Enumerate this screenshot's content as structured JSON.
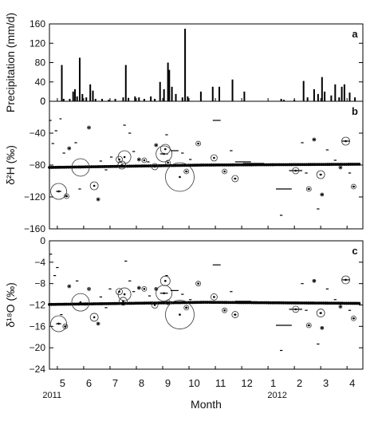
{
  "chart_data": [
    {
      "panel": "a",
      "type": "bar",
      "ylabel": "Precipitation (mm/d)",
      "ylim": [
        0,
        160
      ],
      "yticks": [
        0,
        40,
        80,
        120,
        160
      ],
      "bars": [
        {
          "m": 4.67,
          "v": 75
        },
        {
          "m": 4.74,
          "v": 5
        },
        {
          "m": 4.97,
          "v": 5
        },
        {
          "m": 5.1,
          "v": 20
        },
        {
          "m": 5.17,
          "v": 25
        },
        {
          "m": 5.25,
          "v": 10
        },
        {
          "m": 5.35,
          "v": 90
        },
        {
          "m": 5.45,
          "v": 15
        },
        {
          "m": 5.6,
          "v": 8
        },
        {
          "m": 5.75,
          "v": 35
        },
        {
          "m": 5.85,
          "v": 22
        },
        {
          "m": 5.95,
          "v": 5
        },
        {
          "m": 6.2,
          "v": 5
        },
        {
          "m": 6.45,
          "v": 3
        },
        {
          "m": 6.7,
          "v": 5
        },
        {
          "m": 7.0,
          "v": 8
        },
        {
          "m": 7.1,
          "v": 75
        },
        {
          "m": 7.2,
          "v": 7
        },
        {
          "m": 7.45,
          "v": 10
        },
        {
          "m": 7.6,
          "v": 8
        },
        {
          "m": 7.8,
          "v": 5
        },
        {
          "m": 8.05,
          "v": 10
        },
        {
          "m": 8.2,
          "v": 5
        },
        {
          "m": 8.4,
          "v": 40
        },
        {
          "m": 8.55,
          "v": 25
        },
        {
          "m": 8.7,
          "v": 80
        },
        {
          "m": 8.75,
          "v": 65
        },
        {
          "m": 8.85,
          "v": 30
        },
        {
          "m": 9.0,
          "v": 15
        },
        {
          "m": 9.25,
          "v": 8
        },
        {
          "m": 9.35,
          "v": 150
        },
        {
          "m": 9.45,
          "v": 10
        },
        {
          "m": 9.95,
          "v": 20
        },
        {
          "m": 10.4,
          "v": 30
        },
        {
          "m": 10.65,
          "v": 30
        },
        {
          "m": 11.15,
          "v": 45
        },
        {
          "m": 11.6,
          "v": 20
        },
        {
          "m": 13.0,
          "v": 5
        },
        {
          "m": 13.1,
          "v": 3
        },
        {
          "m": 13.5,
          "v": 3
        },
        {
          "m": 13.85,
          "v": 42
        },
        {
          "m": 14.0,
          "v": 8
        },
        {
          "m": 14.25,
          "v": 25
        },
        {
          "m": 14.4,
          "v": 15
        },
        {
          "m": 14.55,
          "v": 50
        },
        {
          "m": 14.65,
          "v": 20
        },
        {
          "m": 14.9,
          "v": 12
        },
        {
          "m": 15.05,
          "v": 35
        },
        {
          "m": 15.2,
          "v": 8
        },
        {
          "m": 15.3,
          "v": 30
        },
        {
          "m": 15.4,
          "v": 35
        },
        {
          "m": 15.6,
          "v": 18
        },
        {
          "m": 15.8,
          "v": 8
        }
      ]
    },
    {
      "panel": "b",
      "type": "scatter",
      "ylabel": "δ²H (‰)",
      "ylim": [
        -160,
        0
      ],
      "yticks": [
        -160,
        -120,
        -80,
        -40,
        0
      ],
      "baseline_points": {
        "from": 4.2,
        "to": 16.0,
        "step": 0.08,
        "y_start": -83,
        "y_mid": -80,
        "y_end": -79
      },
      "markers": [
        {
          "m": 4.23,
          "v": -24,
          "r": 0,
          "w": 0.05
        },
        {
          "m": 4.33,
          "v": -53,
          "r": 0,
          "w": 0.05
        },
        {
          "m": 4.45,
          "v": -37,
          "r": 0,
          "w": 0.05
        },
        {
          "m": 4.55,
          "v": -113,
          "r": 10,
          "w": 0.1
        },
        {
          "m": 4.62,
          "v": -22,
          "r": 0,
          "w": 0.04
        },
        {
          "m": 4.75,
          "v": -65,
          "r": 0,
          "w": 0.05
        },
        {
          "m": 4.85,
          "v": -119,
          "r": 3,
          "w": 0.05
        },
        {
          "m": 4.95,
          "v": -59,
          "r": 2,
          "w": 0
        },
        {
          "m": 5.2,
          "v": -52,
          "r": 0,
          "w": 0.05
        },
        {
          "m": 5.38,
          "v": -83,
          "r": 11,
          "w": 0
        },
        {
          "m": 5.35,
          "v": -110,
          "r": 0,
          "w": 0.05
        },
        {
          "m": 5.55,
          "v": -82,
          "r": 0,
          "w": 0.05
        },
        {
          "m": 5.7,
          "v": -33,
          "r": 2,
          "w": 0
        },
        {
          "m": 5.9,
          "v": -106,
          "r": 5,
          "w": 0
        },
        {
          "m": 6.05,
          "v": -123,
          "r": 2,
          "w": 0
        },
        {
          "m": 6.15,
          "v": -75,
          "r": 0,
          "w": 0.05
        },
        {
          "m": 6.35,
          "v": -86,
          "r": 0,
          "w": 0.05
        },
        {
          "m": 6.55,
          "v": -70,
          "r": 0,
          "w": 0.05
        },
        {
          "m": 6.85,
          "v": -73,
          "r": 4,
          "w": 0
        },
        {
          "m": 7.05,
          "v": -70,
          "r": 8,
          "w": 0
        },
        {
          "m": 6.95,
          "v": -80,
          "r": 5,
          "w": 0
        },
        {
          "m": 7.05,
          "v": -30,
          "r": 0,
          "w": 0.05
        },
        {
          "m": 7.25,
          "v": -40,
          "r": 0,
          "w": 0.05
        },
        {
          "m": 7.4,
          "v": -63,
          "r": 0,
          "w": 0.05
        },
        {
          "m": 7.6,
          "v": -73,
          "r": 2,
          "w": 0
        },
        {
          "m": 7.8,
          "v": -74,
          "r": 3,
          "w": 0
        },
        {
          "m": 7.95,
          "v": -76,
          "r": 0,
          "w": 0.05
        },
        {
          "m": 8.2,
          "v": -82,
          "r": 4,
          "w": 0
        },
        {
          "m": 8.25,
          "v": -55,
          "r": 2,
          "w": 0
        },
        {
          "m": 8.55,
          "v": -66,
          "r": 10,
          "w": 0.15
        },
        {
          "m": 8.6,
          "v": -60,
          "r": 6,
          "w": 0
        },
        {
          "m": 8.7,
          "v": -77,
          "r": 3,
          "w": 0
        },
        {
          "m": 8.65,
          "v": -42,
          "r": 0,
          "w": 0.05
        },
        {
          "m": 8.95,
          "v": -62,
          "r": 0,
          "w": 0.15
        },
        {
          "m": 9.15,
          "v": -95,
          "r": 18,
          "w": 0
        },
        {
          "m": 9.25,
          "v": -65,
          "r": 0,
          "w": 0.05
        },
        {
          "m": 9.4,
          "v": -88,
          "r": 3,
          "w": 0.05
        },
        {
          "m": 9.55,
          "v": -73,
          "r": 0,
          "w": 0.05
        },
        {
          "m": 9.85,
          "v": -53,
          "r": 3,
          "w": 0
        },
        {
          "m": 10.45,
          "v": -71,
          "r": 4,
          "w": 0
        },
        {
          "m": 10.55,
          "v": -24,
          "r": 0,
          "w": 0.15
        },
        {
          "m": 10.85,
          "v": -88,
          "r": 3,
          "w": 0
        },
        {
          "m": 11.1,
          "v": -62,
          "r": 0,
          "w": 0.05
        },
        {
          "m": 11.25,
          "v": -97,
          "r": 4,
          "w": 0.05
        },
        {
          "m": 11.55,
          "v": -76,
          "r": 0,
          "w": 0.3
        },
        {
          "m": 11.95,
          "v": -78,
          "r": 0,
          "w": 0.4
        },
        {
          "m": 13.1,
          "v": -110,
          "r": 0,
          "w": 0.3
        },
        {
          "m": 13.0,
          "v": -143,
          "r": 0,
          "w": 0.05
        },
        {
          "m": 13.55,
          "v": -87,
          "r": 4,
          "w": 0.25
        },
        {
          "m": 13.8,
          "v": -52,
          "r": 0,
          "w": 0.05
        },
        {
          "m": 13.95,
          "v": -90,
          "r": 0,
          "w": 0.05
        },
        {
          "m": 14.05,
          "v": -110,
          "r": 3,
          "w": 0.05
        },
        {
          "m": 14.25,
          "v": -48,
          "r": 2,
          "w": 0.05
        },
        {
          "m": 14.4,
          "v": -135,
          "r": 0,
          "w": 0.05
        },
        {
          "m": 14.5,
          "v": -92,
          "r": 5,
          "w": 0.05
        },
        {
          "m": 14.55,
          "v": -117,
          "r": 2,
          "w": 0.05
        },
        {
          "m": 14.75,
          "v": -61,
          "r": 0,
          "w": 0.05
        },
        {
          "m": 15.05,
          "v": -74,
          "r": 0,
          "w": 0.05
        },
        {
          "m": 15.25,
          "v": -83,
          "r": 2,
          "w": 0
        },
        {
          "m": 15.45,
          "v": -50,
          "r": 5,
          "w": 0.15
        },
        {
          "m": 15.6,
          "v": -90,
          "r": 0,
          "w": 0.05
        },
        {
          "m": 15.75,
          "v": -107,
          "r": 3,
          "w": 0.05
        }
      ]
    },
    {
      "panel": "c",
      "type": "scatter",
      "ylabel": "δ¹⁸O (‰)",
      "ylim": [
        -24,
        0
      ],
      "yticks": [
        -24,
        -20,
        -16,
        -12,
        -8,
        -4,
        0
      ],
      "baseline_points": {
        "from": 4.2,
        "to": 16.0,
        "step": 0.08,
        "y_start": -11.9,
        "y_mid": -11.5,
        "y_end": -11.7
      },
      "markers": [
        {
          "m": 4.25,
          "v": -2.5,
          "r": 0,
          "w": 0.05
        },
        {
          "m": 4.4,
          "v": -6.5,
          "r": 0,
          "w": 0.05
        },
        {
          "m": 4.5,
          "v": -5.0,
          "r": 0,
          "w": 0.05
        },
        {
          "m": 4.55,
          "v": -15.5,
          "r": 10,
          "w": 0.1
        },
        {
          "m": 4.65,
          "v": -13.8,
          "r": 0,
          "w": 0.05
        },
        {
          "m": 4.8,
          "v": -16.0,
          "r": 3,
          "w": 0.05
        },
        {
          "m": 4.95,
          "v": -8.5,
          "r": 2,
          "w": 0
        },
        {
          "m": 5.25,
          "v": -7.5,
          "r": 0,
          "w": 0.05
        },
        {
          "m": 5.38,
          "v": -11.5,
          "r": 11,
          "w": 0
        },
        {
          "m": 5.55,
          "v": -12.0,
          "r": 0,
          "w": 0.05
        },
        {
          "m": 5.7,
          "v": -9.0,
          "r": 2,
          "w": 0
        },
        {
          "m": 5.9,
          "v": -14.3,
          "r": 5,
          "w": 0
        },
        {
          "m": 6.05,
          "v": -15.5,
          "r": 2,
          "w": 0
        },
        {
          "m": 6.15,
          "v": -10.5,
          "r": 0,
          "w": 0.05
        },
        {
          "m": 6.35,
          "v": -12.5,
          "r": 0,
          "w": 0.05
        },
        {
          "m": 6.5,
          "v": -9.0,
          "r": 0,
          "w": 0.05
        },
        {
          "m": 6.85,
          "v": -9.5,
          "r": 4,
          "w": 0
        },
        {
          "m": 7.05,
          "v": -10.0,
          "r": 8,
          "w": 0
        },
        {
          "m": 7.0,
          "v": -11.3,
          "r": 5,
          "w": 0
        },
        {
          "m": 7.1,
          "v": -3.8,
          "r": 0,
          "w": 0.05
        },
        {
          "m": 7.25,
          "v": -7.5,
          "r": 0,
          "w": 0.05
        },
        {
          "m": 7.4,
          "v": -9.5,
          "r": 0,
          "w": 0.05
        },
        {
          "m": 7.6,
          "v": -8.8,
          "r": 2,
          "w": 0
        },
        {
          "m": 7.8,
          "v": -9.0,
          "r": 3,
          "w": 0
        },
        {
          "m": 8.0,
          "v": -10.3,
          "r": 0,
          "w": 0.05
        },
        {
          "m": 8.2,
          "v": -12.0,
          "r": 4,
          "w": 0
        },
        {
          "m": 8.25,
          "v": -9.0,
          "r": 2,
          "w": 0
        },
        {
          "m": 8.55,
          "v": -9.8,
          "r": 10,
          "w": 0.15
        },
        {
          "m": 8.6,
          "v": -7.5,
          "r": 6,
          "w": 0
        },
        {
          "m": 8.7,
          "v": -11.5,
          "r": 3,
          "w": 0
        },
        {
          "m": 8.65,
          "v": -6.5,
          "r": 0,
          "w": 0.05
        },
        {
          "m": 8.95,
          "v": -9.3,
          "r": 0,
          "w": 0.15
        },
        {
          "m": 9.15,
          "v": -13.8,
          "r": 18,
          "w": 0
        },
        {
          "m": 9.25,
          "v": -10.0,
          "r": 0,
          "w": 0.05
        },
        {
          "m": 9.4,
          "v": -12.5,
          "r": 3,
          "w": 0.05
        },
        {
          "m": 9.55,
          "v": -11.0,
          "r": 0,
          "w": 0.05
        },
        {
          "m": 9.85,
          "v": -8.0,
          "r": 3,
          "w": 0
        },
        {
          "m": 10.45,
          "v": -10.5,
          "r": 4,
          "w": 0
        },
        {
          "m": 10.55,
          "v": -4.5,
          "r": 0,
          "w": 0.15
        },
        {
          "m": 10.85,
          "v": -13.0,
          "r": 3,
          "w": 0
        },
        {
          "m": 11.1,
          "v": -9.5,
          "r": 0,
          "w": 0.05
        },
        {
          "m": 11.25,
          "v": -13.8,
          "r": 4,
          "w": 0.05
        },
        {
          "m": 11.55,
          "v": -11.3,
          "r": 0,
          "w": 0.3
        },
        {
          "m": 11.95,
          "v": -11.5,
          "r": 0,
          "w": 0.4
        },
        {
          "m": 13.1,
          "v": -15.8,
          "r": 0,
          "w": 0.3
        },
        {
          "m": 13.0,
          "v": -20.5,
          "r": 0,
          "w": 0.05
        },
        {
          "m": 13.55,
          "v": -12.8,
          "r": 4,
          "w": 0.25
        },
        {
          "m": 13.8,
          "v": -8.0,
          "r": 0,
          "w": 0.05
        },
        {
          "m": 13.95,
          "v": -13.0,
          "r": 0,
          "w": 0.05
        },
        {
          "m": 14.05,
          "v": -15.8,
          "r": 3,
          "w": 0.05
        },
        {
          "m": 14.25,
          "v": -7.5,
          "r": 2,
          "w": 0.05
        },
        {
          "m": 14.4,
          "v": -19.3,
          "r": 0,
          "w": 0.05
        },
        {
          "m": 14.5,
          "v": -13.5,
          "r": 5,
          "w": 0.05
        },
        {
          "m": 14.55,
          "v": -16.3,
          "r": 2,
          "w": 0.05
        },
        {
          "m": 14.75,
          "v": -9.0,
          "r": 0,
          "w": 0.05
        },
        {
          "m": 15.05,
          "v": -11.0,
          "r": 0,
          "w": 0.05
        },
        {
          "m": 15.25,
          "v": -12.3,
          "r": 2,
          "w": 0
        },
        {
          "m": 15.45,
          "v": -7.3,
          "r": 5,
          "w": 0.15
        },
        {
          "m": 15.6,
          "v": -13.0,
          "r": 0,
          "w": 0.05
        },
        {
          "m": 15.75,
          "v": -14.5,
          "r": 3,
          "w": 0.05
        }
      ]
    }
  ],
  "xaxis": {
    "label": "Month",
    "range": [
      4.2,
      16.1
    ],
    "ticks": [
      {
        "m": 5,
        "label": "5"
      },
      {
        "m": 6,
        "label": "6"
      },
      {
        "m": 7,
        "label": "7"
      },
      {
        "m": 8,
        "label": "8"
      },
      {
        "m": 9,
        "label": "9"
      },
      {
        "m": 10,
        "label": "10"
      },
      {
        "m": 11,
        "label": "11"
      },
      {
        "m": 12,
        "label": "12"
      },
      {
        "m": 13,
        "label": "1"
      },
      {
        "m": 14,
        "label": "2"
      },
      {
        "m": 15,
        "label": "3"
      },
      {
        "m": 16,
        "label": "4"
      }
    ],
    "years": [
      {
        "m": 4.45,
        "label": "2011"
      },
      {
        "m": 13.0,
        "label": "2012"
      }
    ]
  }
}
